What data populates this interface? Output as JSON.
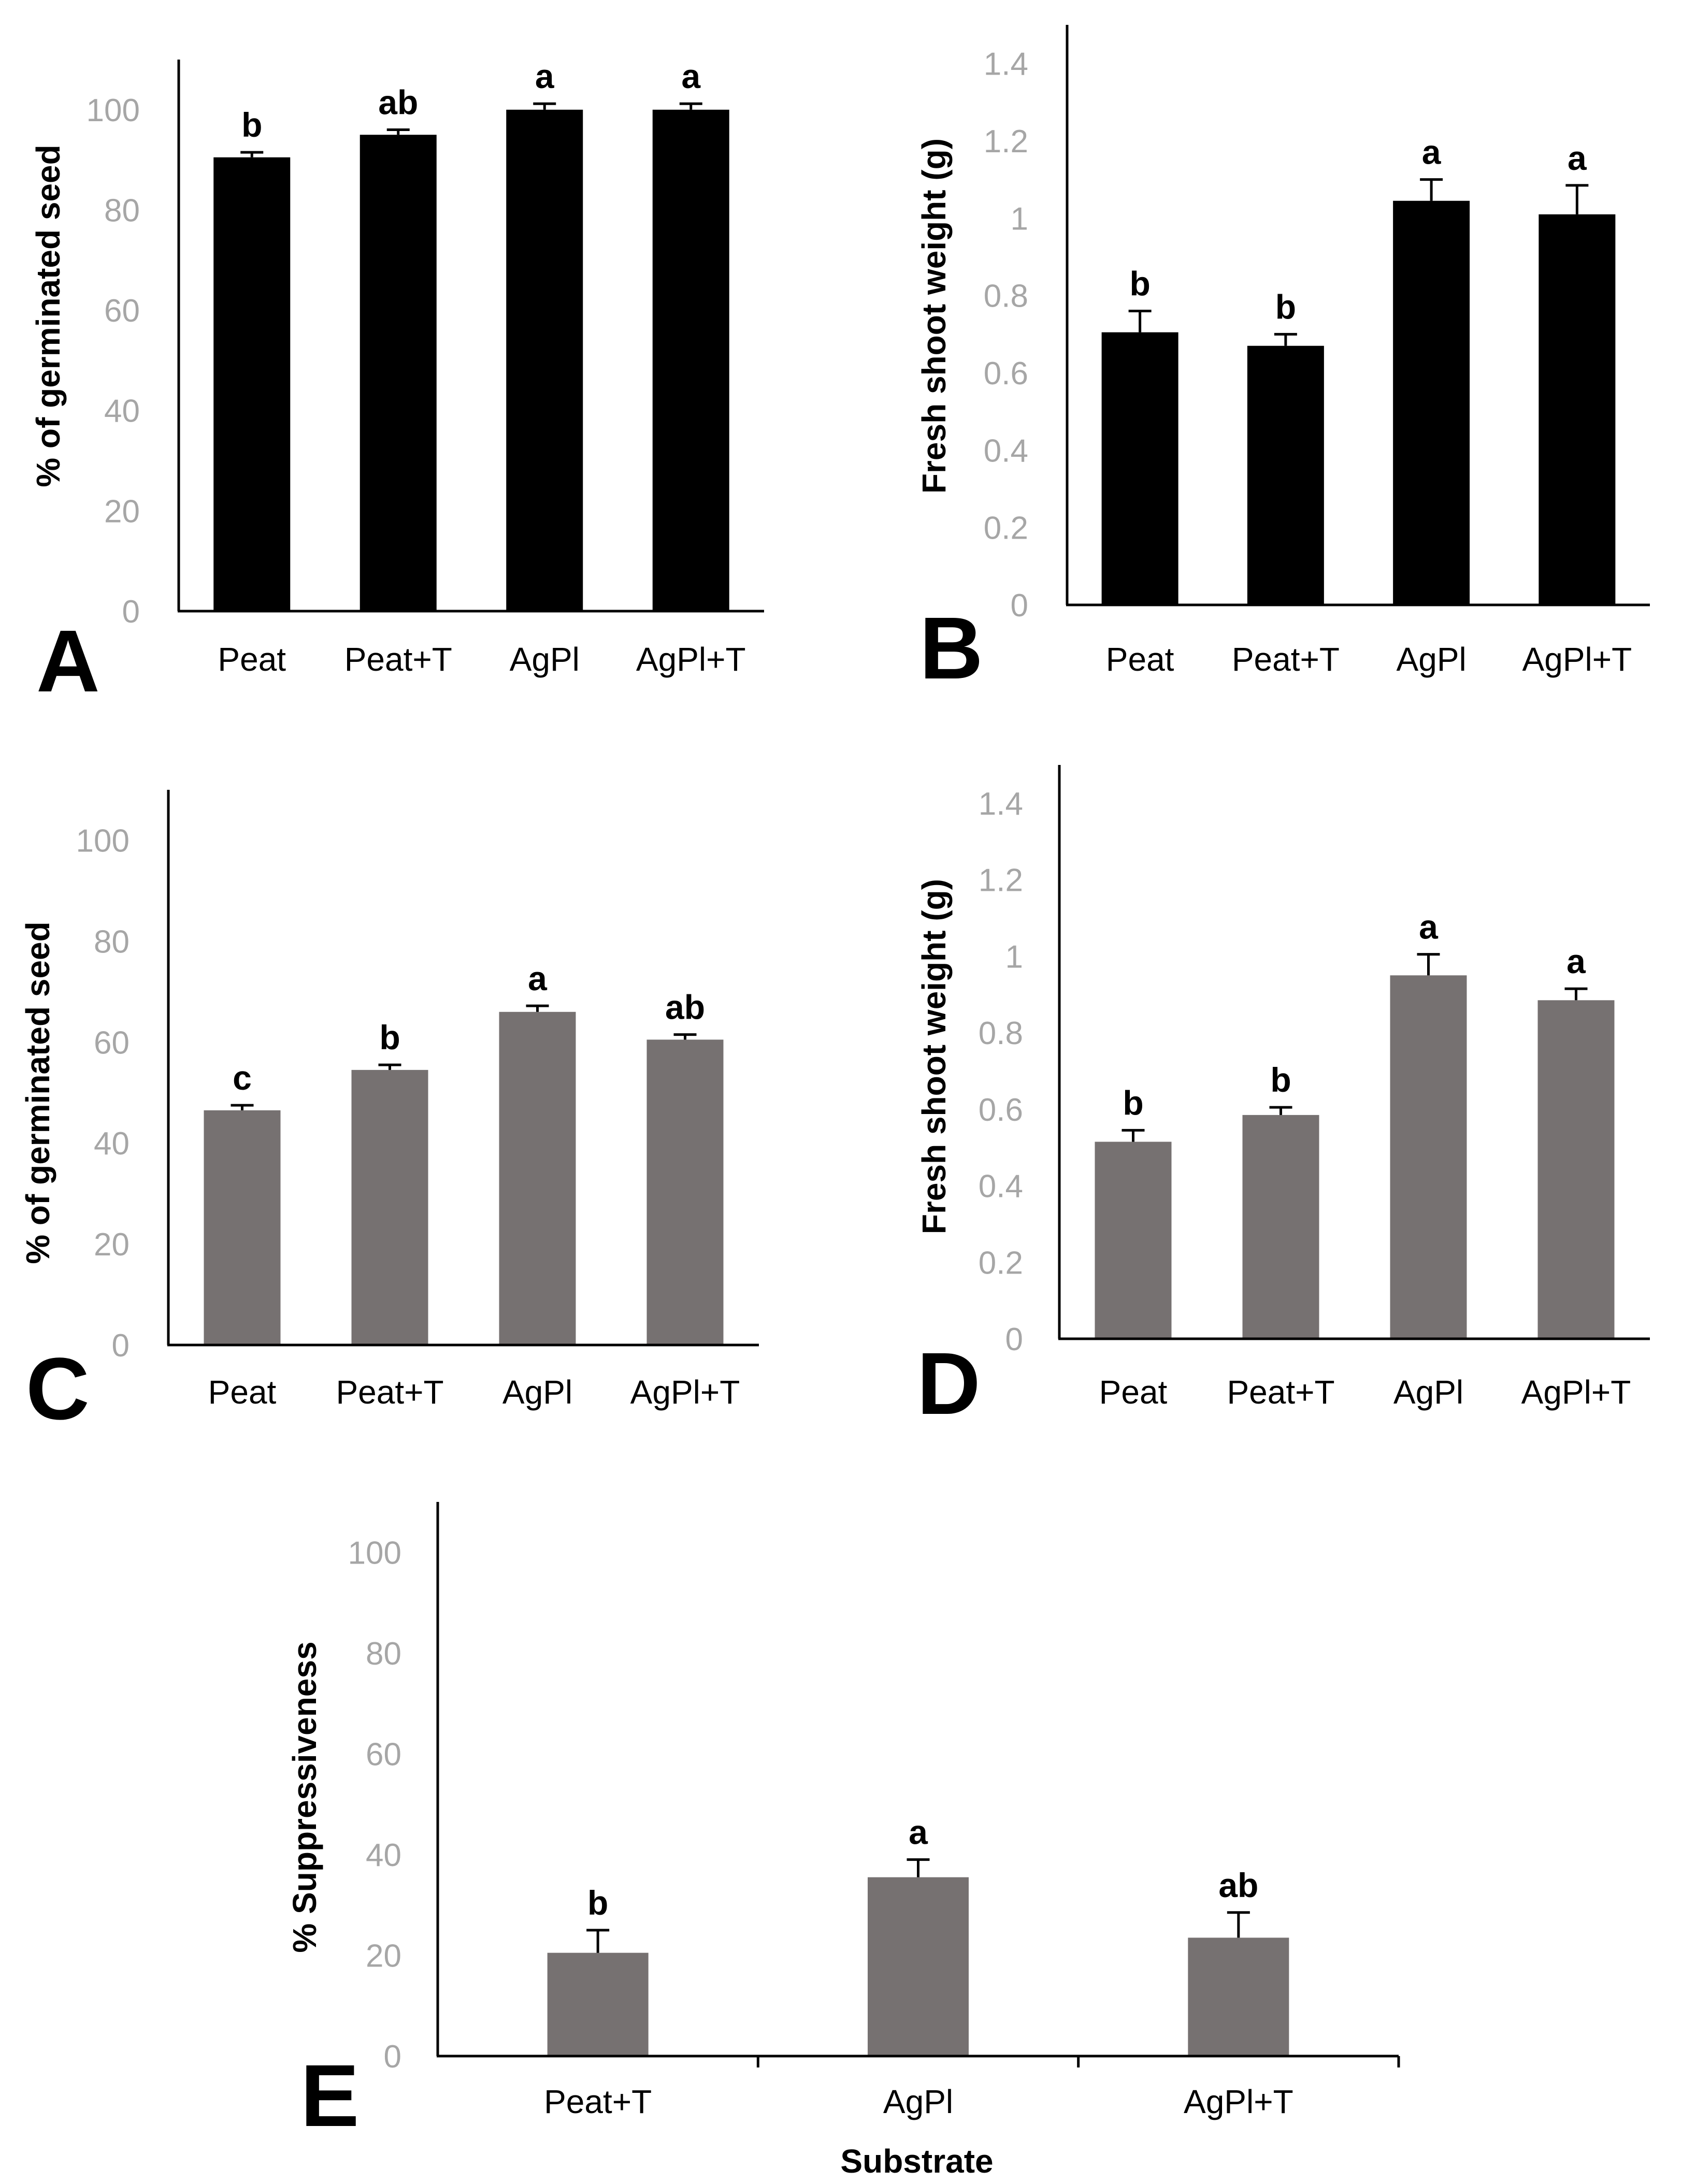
{
  "chart_data": [
    {
      "panel": "A",
      "type": "bar",
      "categories": [
        "Peat",
        "Peat+T",
        "AgPl",
        "AgPl+T"
      ],
      "values": [
        90.5,
        95,
        100,
        100
      ],
      "errors": [
        1,
        1,
        1.2,
        1.2
      ],
      "significance": [
        "b",
        "ab",
        "a",
        "a"
      ],
      "ylabel": "% of germinated seed",
      "xlabel": "",
      "ylim": [
        0,
        110
      ],
      "yticks": [
        0,
        20,
        40,
        60,
        80,
        100
      ],
      "ytick_labels": [
        "0",
        "20",
        "40",
        "60",
        "80",
        "100"
      ],
      "bar_color": "#000000"
    },
    {
      "panel": "B",
      "type": "bar",
      "categories": [
        "Peat",
        "Peat+T",
        "AgPl",
        "AgPl+T"
      ],
      "values": [
        0.705,
        0.67,
        1.045,
        1.01
      ],
      "errors": [
        0.055,
        0.03,
        0.055,
        0.075
      ],
      "significance": [
        "b",
        "b",
        "a",
        "a"
      ],
      "ylabel": "Fresh shoot  weight (g)",
      "xlabel": "",
      "ylim": [
        0,
        1.5
      ],
      "yticks": [
        0,
        0.2,
        0.4,
        0.6,
        0.8,
        1,
        1.2,
        1.4
      ],
      "ytick_labels": [
        "0",
        "0.2",
        "0.4",
        "0.6",
        "0.8",
        "1",
        "1.2",
        "1.4"
      ],
      "bar_color": "#000000"
    },
    {
      "panel": "C",
      "type": "bar",
      "categories": [
        "Peat",
        "Peat+T",
        "AgPl",
        "AgPl+T"
      ],
      "values": [
        46.5,
        54.5,
        66,
        60.5
      ],
      "errors": [
        1,
        1,
        1.2,
        1
      ],
      "significance": [
        "c",
        "b",
        "a",
        "ab"
      ],
      "ylabel": "% of germinated seed",
      "xlabel": "",
      "ylim": [
        0,
        110
      ],
      "yticks": [
        0,
        20,
        40,
        60,
        80,
        100
      ],
      "ytick_labels": [
        "0",
        "20",
        "40",
        "60",
        "80",
        "100"
      ],
      "bar_color": "#767171"
    },
    {
      "panel": "D",
      "type": "bar",
      "categories": [
        "Peat",
        "Peat+T",
        "AgPl",
        "AgPl+T"
      ],
      "values": [
        0.515,
        0.585,
        0.95,
        0.885
      ],
      "errors": [
        0.03,
        0.02,
        0.055,
        0.03
      ],
      "significance": [
        "b",
        "b",
        "a",
        "a"
      ],
      "ylabel": "Fresh shoot  weight (g)",
      "xlabel": "",
      "ylim": [
        0,
        1.5
      ],
      "yticks": [
        0,
        0.2,
        0.4,
        0.6,
        0.8,
        1,
        1.2,
        1.4
      ],
      "ytick_labels": [
        "0",
        "0.2",
        "0.4",
        "0.6",
        "0.8",
        "1",
        "1.2",
        "1.4"
      ],
      "bar_color": "#767171"
    },
    {
      "panel": "E",
      "type": "bar",
      "categories": [
        "Peat+T",
        "AgPl",
        "AgPl+T"
      ],
      "values": [
        20.5,
        35.5,
        23.5
      ],
      "errors": [
        4.5,
        3.5,
        5
      ],
      "significance": [
        "b",
        "a",
        "ab"
      ],
      "ylabel": "% Suppressiveness",
      "xlabel": "Substrate",
      "ylim": [
        0,
        110
      ],
      "yticks": [
        0,
        20,
        40,
        60,
        80,
        100
      ],
      "ytick_labels": [
        "0",
        "20",
        "40",
        "60",
        "80",
        "100"
      ],
      "bar_color": "#767171"
    }
  ]
}
